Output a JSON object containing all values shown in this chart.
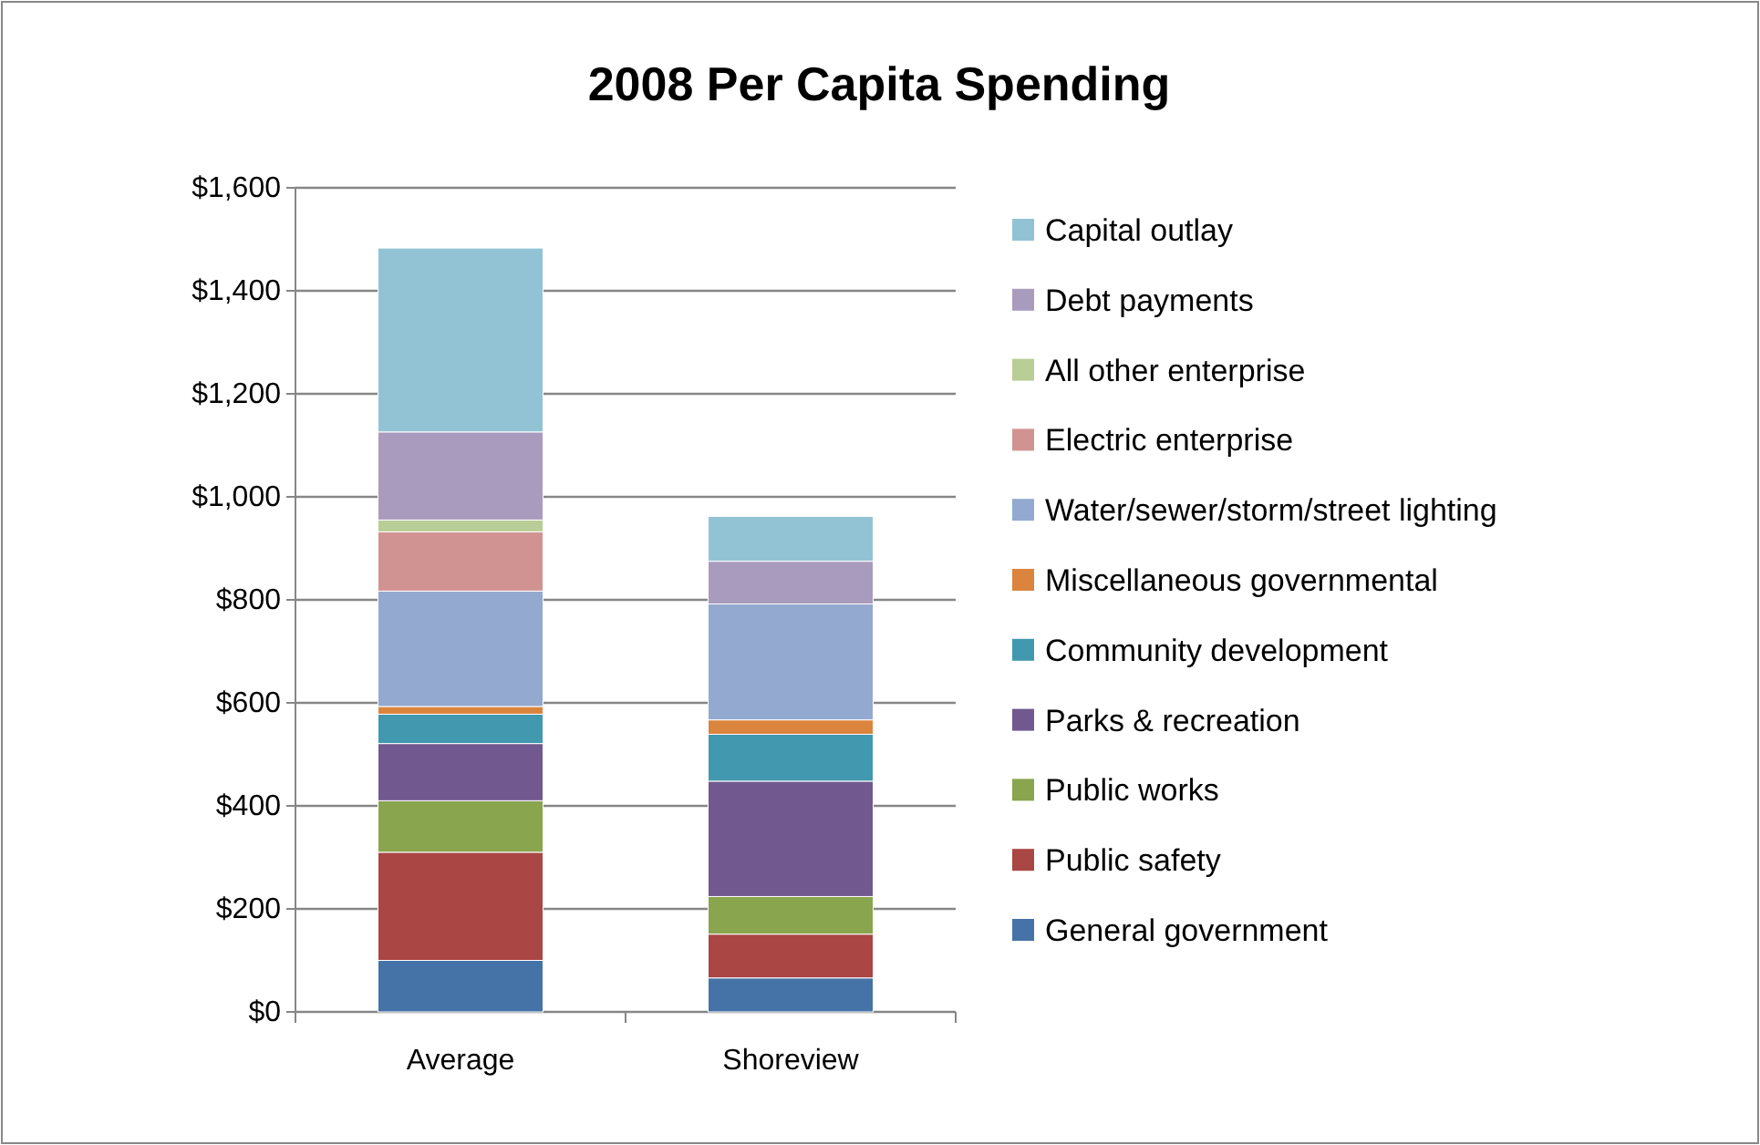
{
  "chart_data": {
    "type": "bar",
    "title": "2008 Per Capita Spending",
    "categories": [
      "Average",
      "Shoreview"
    ],
    "stacked": true,
    "grid": "y",
    "legend": "right",
    "ylim": [
      0,
      1600
    ],
    "yticks": [
      {
        "value": 0,
        "label": "$0"
      },
      {
        "value": 200,
        "label": "$200"
      },
      {
        "value": 400,
        "label": "$400"
      },
      {
        "value": 600,
        "label": "$600"
      },
      {
        "value": 800,
        "label": "$800"
      },
      {
        "value": 1000,
        "label": "$1,000"
      },
      {
        "value": 1200,
        "label": "$1,200"
      },
      {
        "value": 1400,
        "label": "$1,400"
      },
      {
        "value": 1600,
        "label": "$1,600"
      }
    ],
    "series": [
      {
        "name": "General government",
        "color": "#4572a7",
        "values": [
          100,
          66
        ]
      },
      {
        "name": "Public safety",
        "color": "#aa4643",
        "values": [
          210,
          85
        ]
      },
      {
        "name": "Public works",
        "color": "#89a54e",
        "values": [
          100,
          73
        ]
      },
      {
        "name": "Parks & recreation",
        "color": "#71588f",
        "values": [
          111,
          224
        ]
      },
      {
        "name": "Community development",
        "color": "#4198af",
        "values": [
          57,
          91
        ]
      },
      {
        "name": "Miscellaneous governmental",
        "color": "#db843d",
        "values": [
          15,
          28
        ]
      },
      {
        "name": "Water/sewer/storm/street lighting",
        "color": "#93a9cf",
        "values": [
          224,
          225
        ]
      },
      {
        "name": "Electric enterprise",
        "color": "#d19392",
        "values": [
          115,
          0
        ]
      },
      {
        "name": "All other enterprise",
        "color": "#b9cd96",
        "values": [
          23,
          0
        ]
      },
      {
        "name": "Debt payments",
        "color": "#a99bbd",
        "values": [
          171,
          83
        ]
      },
      {
        "name": "Capital outlay",
        "color": "#92c3d4",
        "values": [
          357,
          87
        ]
      }
    ]
  }
}
